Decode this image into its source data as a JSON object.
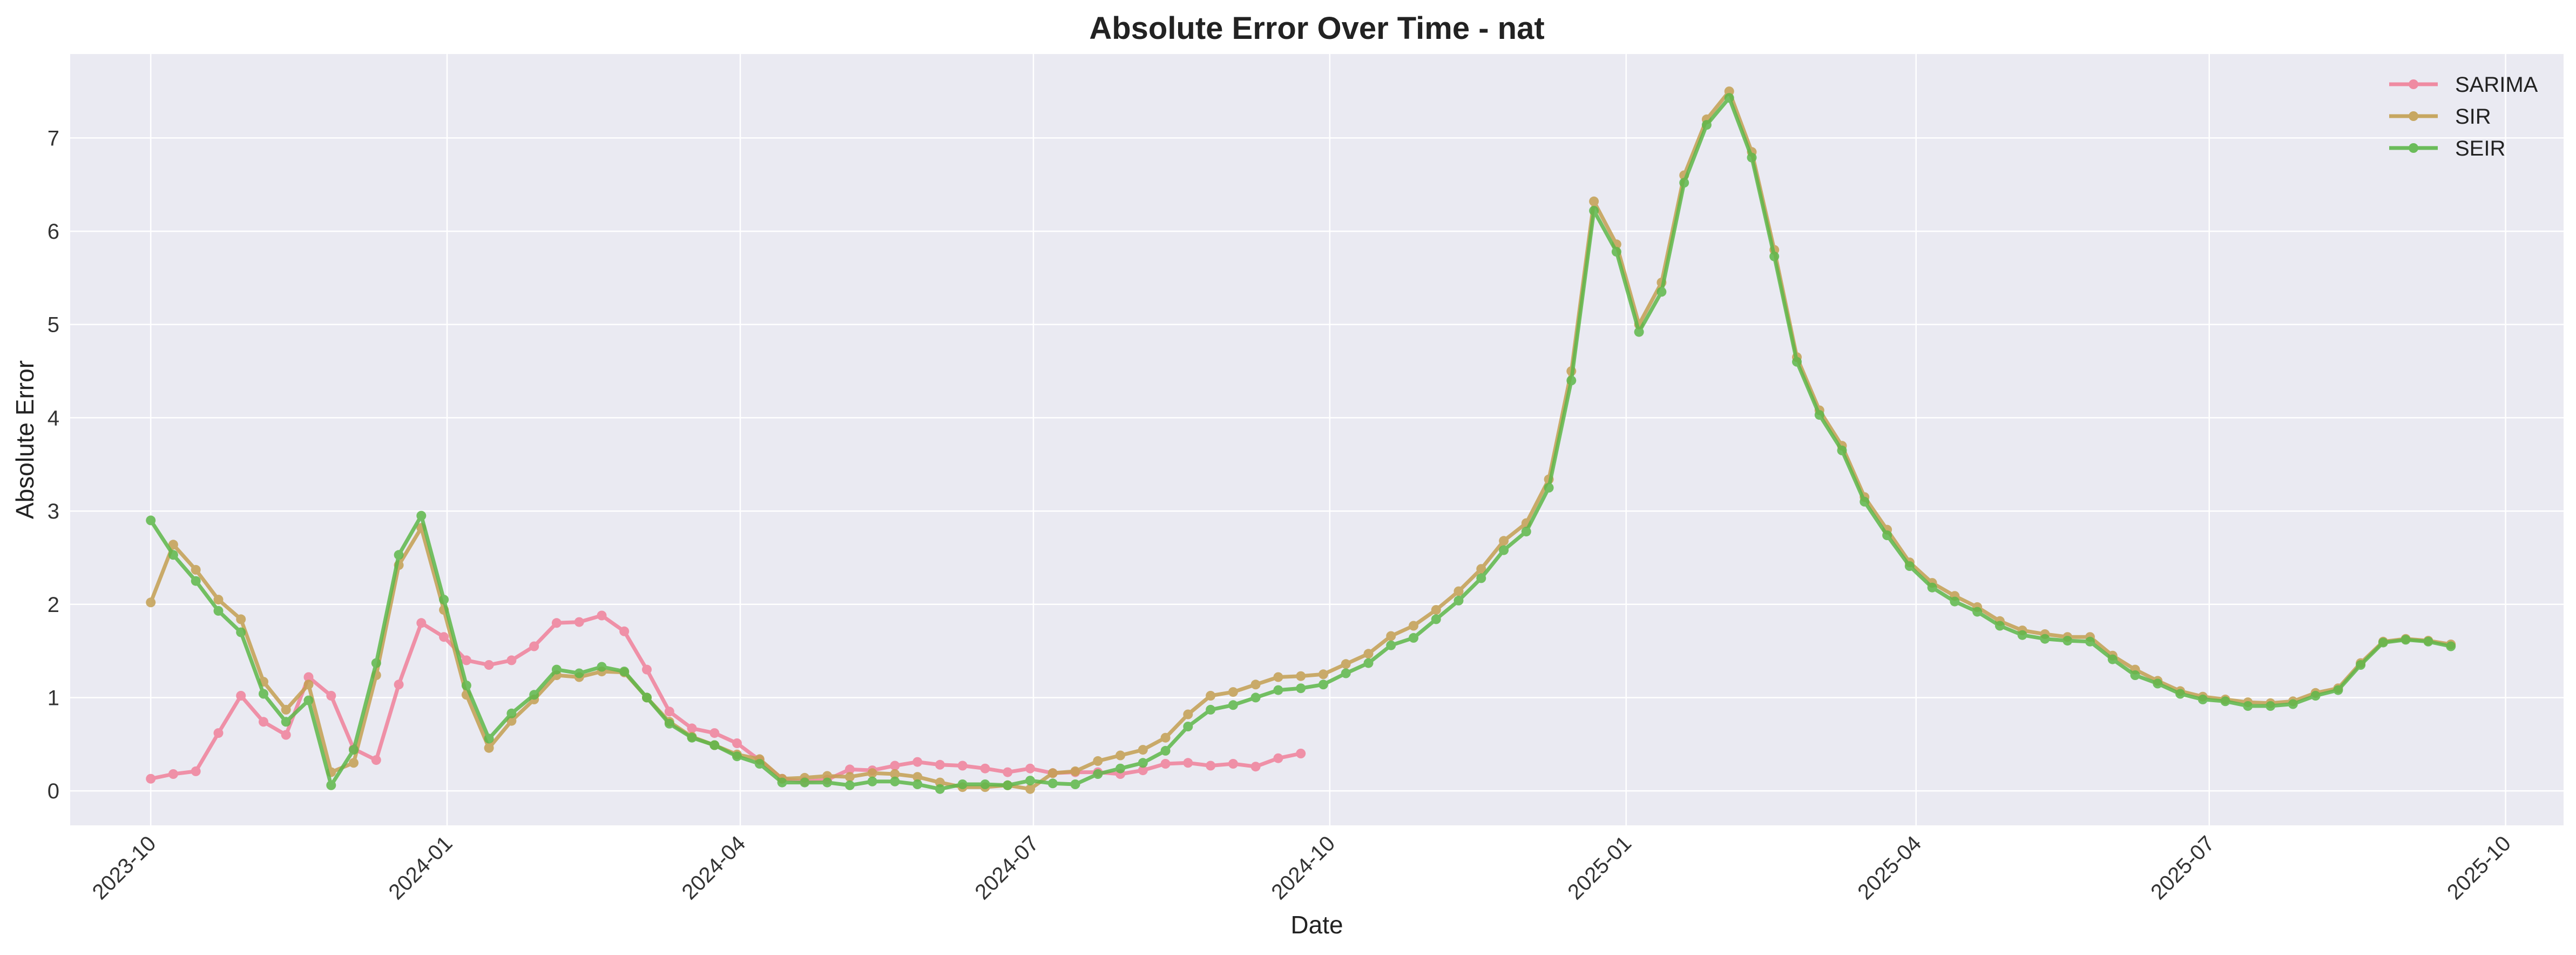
{
  "chart_data": {
    "type": "line",
    "title": "Absolute Error Over Time - nat",
    "xlabel": "Date",
    "ylabel": "Absolute Error",
    "x_range": [
      "2023-09-06",
      "2025-10-19"
    ],
    "ylim": [
      -0.37,
      7.9
    ],
    "x_ticks": [
      "2023-10",
      "2024-01",
      "2024-04",
      "2024-07",
      "2024-10",
      "2025-01",
      "2025-04",
      "2025-07",
      "2025-10"
    ],
    "y_ticks": [
      0,
      1,
      2,
      3,
      4,
      5,
      6,
      7
    ],
    "grid": true,
    "legend_position": "top-right",
    "background": "#eaeaf2",
    "series": [
      {
        "name": "SARIMA",
        "color": "#f0819a",
        "start": "2023-10-01",
        "step_days": 7,
        "values": [
          0.13,
          0.18,
          0.21,
          0.62,
          1.02,
          0.74,
          0.6,
          1.22,
          1.02,
          0.45,
          0.33,
          1.14,
          1.8,
          1.65,
          1.4,
          1.35,
          1.4,
          1.55,
          1.8,
          1.81,
          1.88,
          1.71,
          1.3,
          0.85,
          0.67,
          0.62,
          0.51,
          0.33,
          0.13,
          0.1,
          0.12,
          0.23,
          0.22,
          0.27,
          0.31,
          0.28,
          0.27,
          0.24,
          0.2,
          0.24,
          0.19,
          0.2,
          0.2,
          0.18,
          0.22,
          0.29,
          0.3,
          0.27,
          0.29,
          0.26,
          0.35,
          0.4
        ]
      },
      {
        "name": "SIR",
        "color": "#c4a052",
        "start": "2023-10-01",
        "step_days": 7,
        "values": [
          2.02,
          2.64,
          2.37,
          2.05,
          1.84,
          1.17,
          0.87,
          1.14,
          0.2,
          0.3,
          1.24,
          2.42,
          2.82,
          1.94,
          1.03,
          0.46,
          0.75,
          0.98,
          1.24,
          1.22,
          1.28,
          1.27,
          1.0,
          0.74,
          0.58,
          0.49,
          0.39,
          0.34,
          0.13,
          0.14,
          0.16,
          0.15,
          0.19,
          0.18,
          0.15,
          0.09,
          0.04,
          0.04,
          0.06,
          0.02,
          0.19,
          0.21,
          0.32,
          0.38,
          0.44,
          0.57,
          0.82,
          1.02,
          1.06,
          1.14,
          1.22,
          1.23,
          1.25,
          1.36,
          1.47,
          1.66,
          1.77,
          1.94,
          2.14,
          2.38,
          2.68,
          2.87,
          3.34,
          4.5,
          6.32,
          5.86,
          5.0,
          5.45,
          6.6,
          7.2,
          7.5,
          6.85,
          5.8,
          4.65,
          4.08,
          3.7,
          3.15,
          2.8,
          2.45,
          2.23,
          2.09,
          1.97,
          1.82,
          1.72,
          1.68,
          1.65,
          1.65,
          1.45,
          1.3,
          1.18,
          1.07,
          1.01,
          0.98,
          0.95,
          0.94,
          0.96,
          1.05,
          1.1,
          1.37,
          1.6,
          1.63,
          1.61,
          1.57
        ]
      },
      {
        "name": "SEIR",
        "color": "#5eb84a",
        "start": "2023-10-01",
        "step_days": 7,
        "values": [
          2.9,
          2.53,
          2.25,
          1.93,
          1.7,
          1.04,
          0.74,
          0.97,
          0.06,
          0.44,
          1.37,
          2.53,
          2.95,
          2.05,
          1.13,
          0.56,
          0.83,
          1.03,
          1.3,
          1.26,
          1.33,
          1.28,
          1.0,
          0.72,
          0.57,
          0.49,
          0.37,
          0.29,
          0.09,
          0.09,
          0.09,
          0.06,
          0.1,
          0.1,
          0.07,
          0.02,
          0.07,
          0.07,
          0.06,
          0.11,
          0.08,
          0.07,
          0.18,
          0.24,
          0.3,
          0.43,
          0.69,
          0.87,
          0.92,
          1.0,
          1.08,
          1.1,
          1.14,
          1.26,
          1.37,
          1.56,
          1.64,
          1.84,
          2.04,
          2.28,
          2.58,
          2.78,
          3.25,
          4.4,
          6.22,
          5.78,
          4.92,
          5.35,
          6.52,
          7.14,
          7.43,
          6.79,
          5.73,
          4.6,
          4.03,
          3.65,
          3.1,
          2.74,
          2.41,
          2.18,
          2.03,
          1.92,
          1.77,
          1.67,
          1.63,
          1.61,
          1.6,
          1.41,
          1.24,
          1.15,
          1.04,
          0.98,
          0.96,
          0.91,
          0.91,
          0.93,
          1.02,
          1.08,
          1.35,
          1.59,
          1.62,
          1.6,
          1.55
        ]
      }
    ]
  }
}
